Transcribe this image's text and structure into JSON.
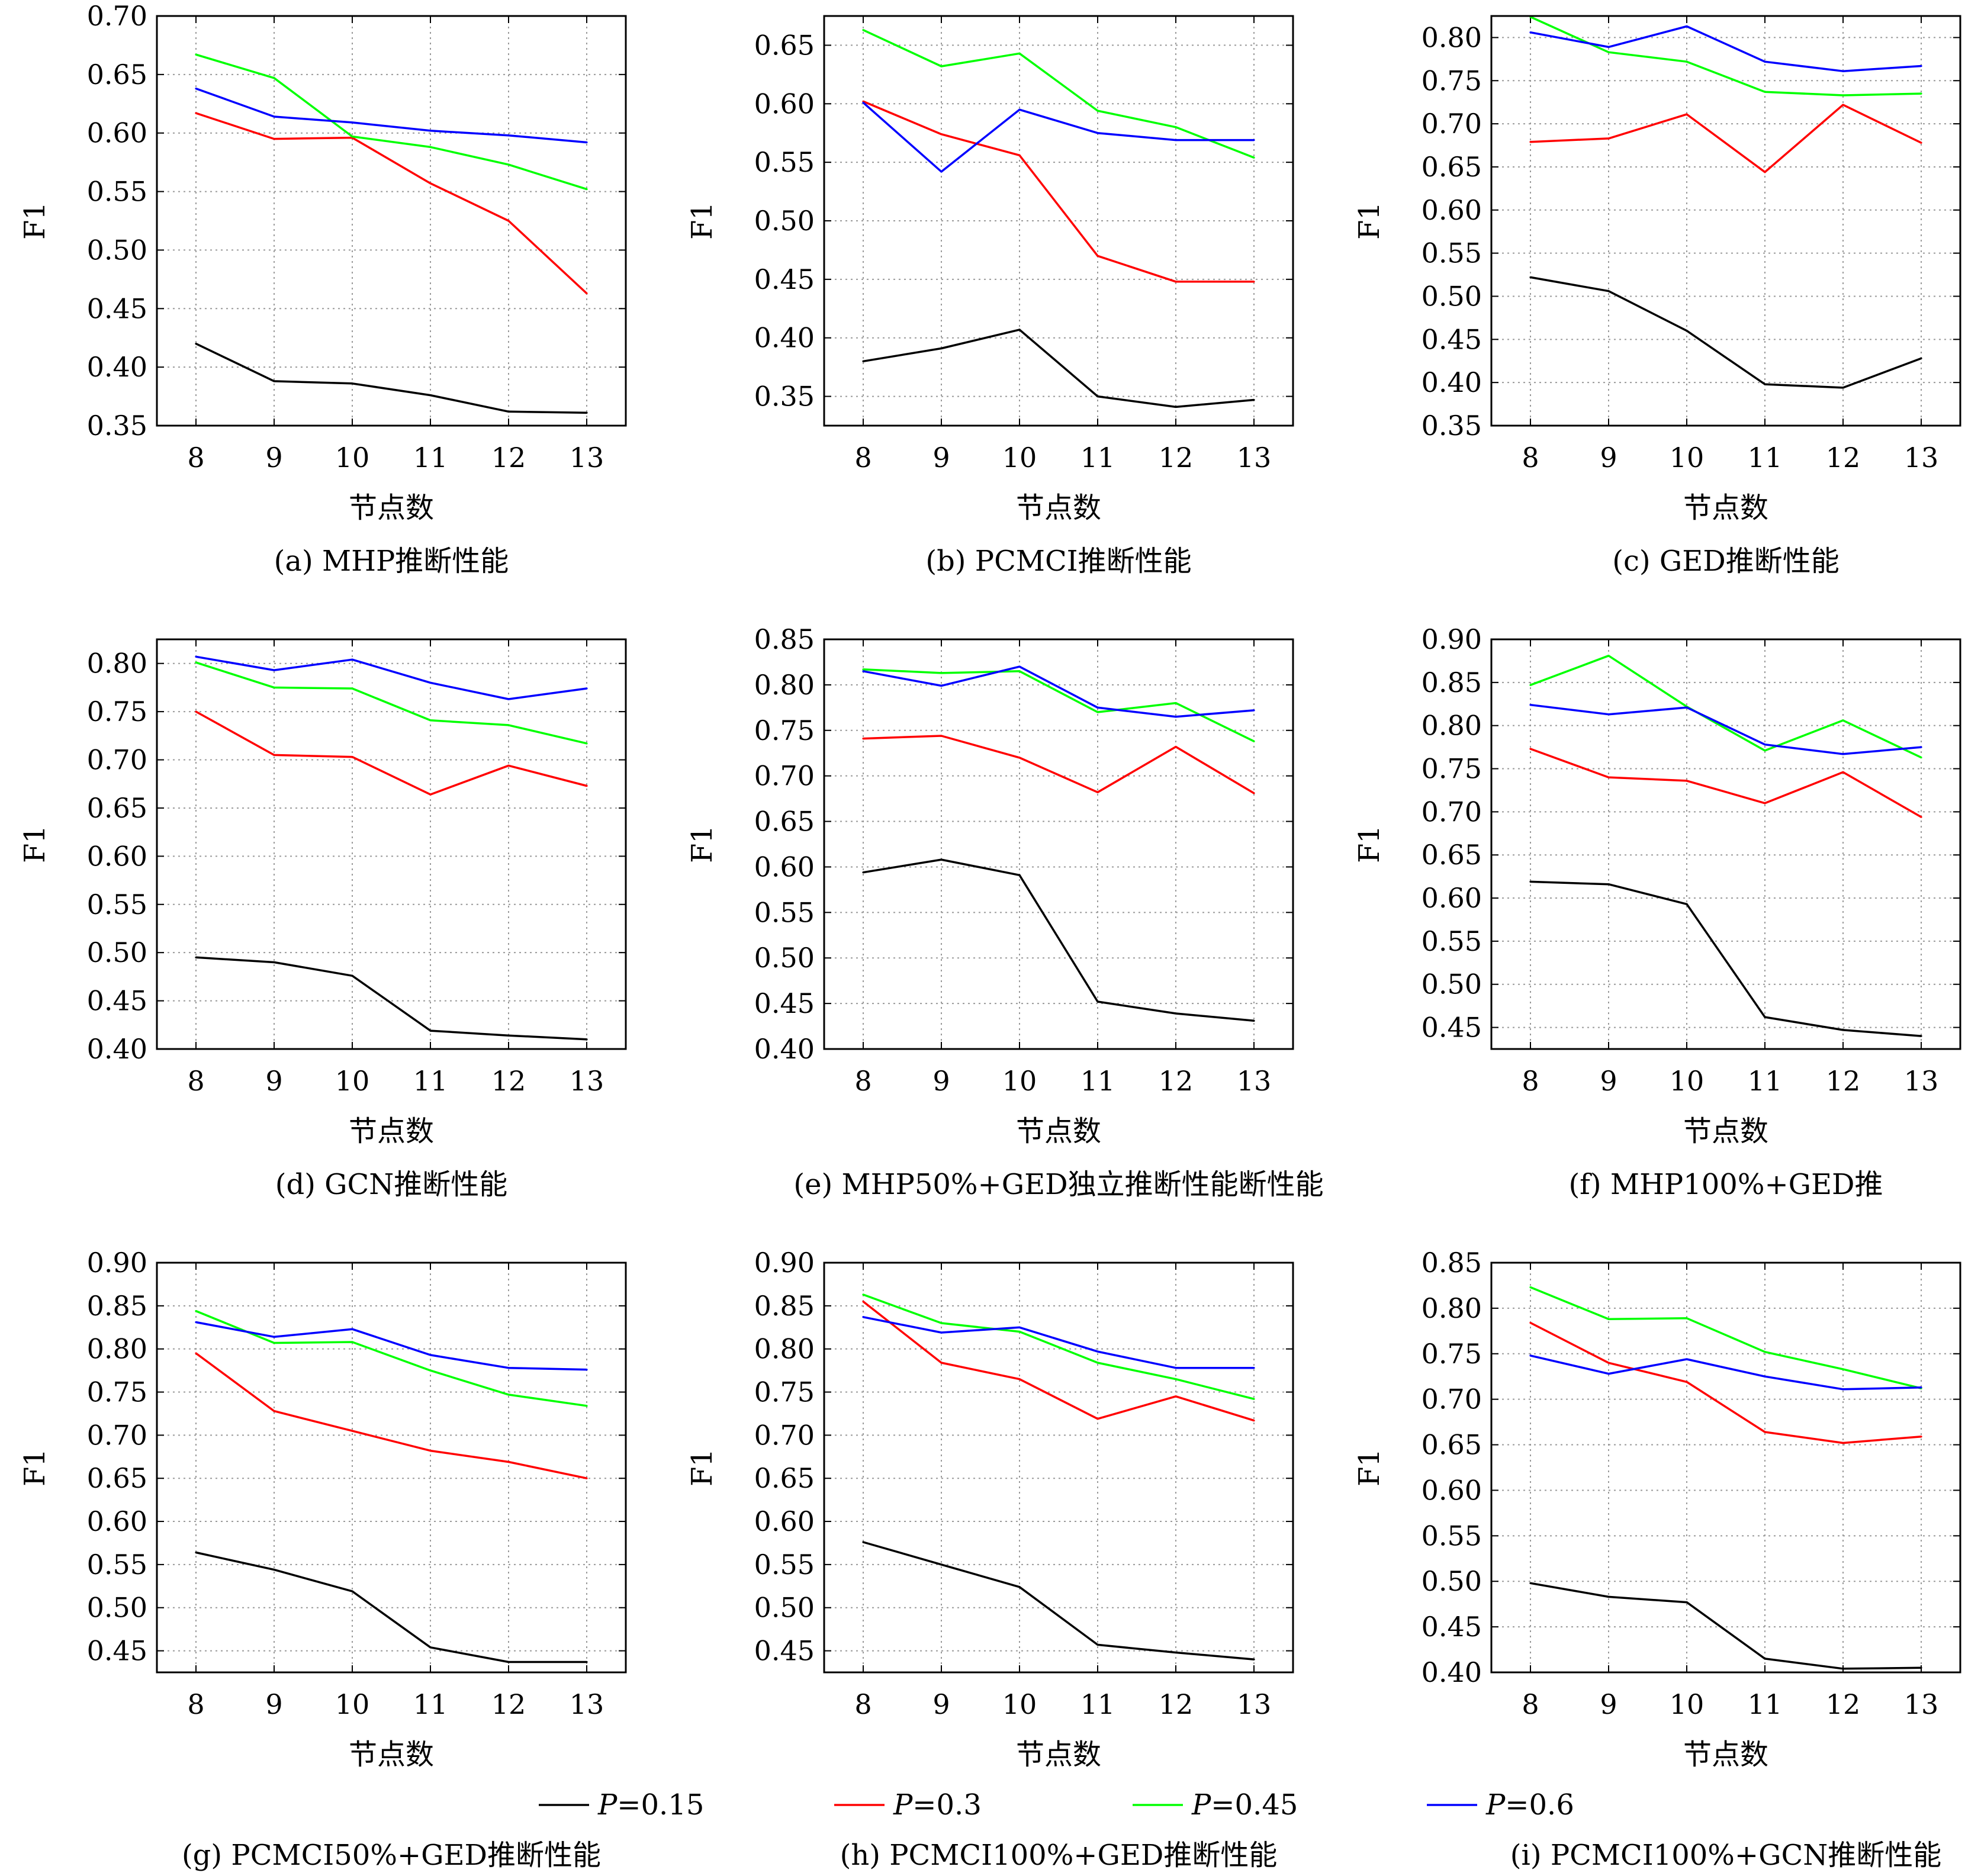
{
  "series_styles": [
    {
      "name": "P=0.15",
      "color": "#000000"
    },
    {
      "name": "P=0.3",
      "color": "#ff0000"
    },
    {
      "name": "P=0.45",
      "color": "#00ff00"
    },
    {
      "name": "P=0.6",
      "color": "#0000ff"
    }
  ],
  "legend": {
    "placement": "bottom",
    "entries": [
      {
        "italic": "P",
        "rest": "=0.15"
      },
      {
        "italic": "P",
        "rest": "=0.3"
      },
      {
        "italic": "P",
        "rest": "=0.45"
      },
      {
        "italic": "P",
        "rest": "=0.6"
      }
    ]
  },
  "chart_data": [
    {
      "type": "line",
      "caption": "(a) MHP推断性能",
      "xlabel": "节点数",
      "ylabel": "F1",
      "x": [
        8,
        9,
        10,
        11,
        12,
        13
      ],
      "ylim": [
        0.35,
        0.7
      ],
      "yticks": [
        "0.35",
        "0.40",
        "0.45",
        "0.50",
        "0.55",
        "0.60",
        "0.65",
        "0.70"
      ],
      "grid": true,
      "series": [
        {
          "name": "P=0.15",
          "values": [
            0.42,
            0.388,
            0.386,
            0.376,
            0.362,
            0.361
          ]
        },
        {
          "name": "P=0.3",
          "values": [
            0.617,
            0.595,
            0.596,
            0.557,
            0.525,
            0.463
          ]
        },
        {
          "name": "P=0.45",
          "values": [
            0.667,
            0.647,
            0.597,
            0.588,
            0.573,
            0.552
          ]
        },
        {
          "name": "P=0.6",
          "values": [
            0.638,
            0.614,
            0.609,
            0.602,
            0.598,
            0.592
          ]
        }
      ]
    },
    {
      "type": "line",
      "caption": "(b) PCMCI推断性能",
      "xlabel": "节点数",
      "ylabel": "F1",
      "x": [
        8,
        9,
        10,
        11,
        12,
        13
      ],
      "ylim": [
        0.325,
        0.675
      ],
      "yticks": [
        "0.35",
        "0.40",
        "0.45",
        "0.50",
        "0.55",
        "0.60",
        "0.65"
      ],
      "grid": true,
      "series": [
        {
          "name": "P=0.15",
          "values": [
            0.38,
            0.391,
            0.407,
            0.35,
            0.341,
            0.347
          ]
        },
        {
          "name": "P=0.3",
          "values": [
            0.602,
            0.574,
            0.556,
            0.47,
            0.448,
            0.448
          ]
        },
        {
          "name": "P=0.45",
          "values": [
            0.663,
            0.632,
            0.643,
            0.594,
            0.58,
            0.554
          ]
        },
        {
          "name": "P=0.6",
          "values": [
            0.601,
            0.542,
            0.595,
            0.575,
            0.569,
            0.569
          ]
        }
      ]
    },
    {
      "type": "line",
      "caption": "(c) GED推断性能",
      "xlabel": "节点数",
      "ylabel": "F1",
      "x": [
        8,
        9,
        10,
        11,
        12,
        13
      ],
      "ylim": [
        0.35,
        0.825
      ],
      "yticks": [
        "0.35",
        "0.40",
        "0.45",
        "0.50",
        "0.55",
        "0.60",
        "0.65",
        "0.70",
        "0.75",
        "0.80"
      ],
      "grid": true,
      "series": [
        {
          "name": "P=0.15",
          "values": [
            0.522,
            0.506,
            0.46,
            0.398,
            0.394,
            0.428
          ]
        },
        {
          "name": "P=0.3",
          "values": [
            0.679,
            0.683,
            0.711,
            0.644,
            0.722,
            0.678
          ]
        },
        {
          "name": "P=0.45",
          "values": [
            0.824,
            0.783,
            0.772,
            0.737,
            0.733,
            0.735
          ]
        },
        {
          "name": "P=0.6",
          "values": [
            0.806,
            0.789,
            0.813,
            0.772,
            0.761,
            0.767
          ]
        }
      ]
    },
    {
      "type": "line",
      "caption": "(d) GCN推断性能",
      "xlabel": "节点数",
      "ylabel": "F1",
      "x": [
        8,
        9,
        10,
        11,
        12,
        13
      ],
      "ylim": [
        0.4,
        0.825
      ],
      "yticks": [
        "0.40",
        "0.45",
        "0.50",
        "0.55",
        "0.60",
        "0.65",
        "0.70",
        "0.75",
        "0.80"
      ],
      "grid": true,
      "series": [
        {
          "name": "P=0.15",
          "values": [
            0.495,
            0.49,
            0.476,
            0.419,
            0.414,
            0.41
          ]
        },
        {
          "name": "P=0.3",
          "values": [
            0.75,
            0.705,
            0.703,
            0.664,
            0.694,
            0.673
          ]
        },
        {
          "name": "P=0.45",
          "values": [
            0.801,
            0.775,
            0.774,
            0.741,
            0.736,
            0.717
          ]
        },
        {
          "name": "P=0.6",
          "values": [
            0.807,
            0.793,
            0.804,
            0.78,
            0.763,
            0.774
          ]
        }
      ]
    },
    {
      "type": "line",
      "caption": "(e) MHP50%+GED独立推断性能断性能",
      "xlabel": "节点数",
      "ylabel": "F1",
      "x": [
        8,
        9,
        10,
        11,
        12,
        13
      ],
      "ylim": [
        0.4,
        0.85
      ],
      "yticks": [
        "0.40",
        "0.45",
        "0.50",
        "0.55",
        "0.60",
        "0.65",
        "0.70",
        "0.75",
        "0.80",
        "0.85"
      ],
      "grid": true,
      "series": [
        {
          "name": "P=0.15",
          "values": [
            0.594,
            0.608,
            0.591,
            0.452,
            0.439,
            0.431
          ]
        },
        {
          "name": "P=0.3",
          "values": [
            0.741,
            0.744,
            0.72,
            0.682,
            0.732,
            0.681
          ]
        },
        {
          "name": "P=0.45",
          "values": [
            0.817,
            0.813,
            0.815,
            0.77,
            0.78,
            0.738
          ]
        },
        {
          "name": "P=0.6",
          "values": [
            0.815,
            0.799,
            0.82,
            0.775,
            0.765,
            0.772
          ]
        }
      ]
    },
    {
      "type": "line",
      "caption": "(f) MHP100%+GED推",
      "xlabel": "节点数",
      "ylabel": "F1",
      "x": [
        8,
        9,
        10,
        11,
        12,
        13
      ],
      "ylim": [
        0.425,
        0.9
      ],
      "yticks": [
        "0.45",
        "0.50",
        "0.55",
        "0.60",
        "0.65",
        "0.70",
        "0.75",
        "0.80",
        "0.85",
        "0.90"
      ],
      "grid": true,
      "series": [
        {
          "name": "P=0.15",
          "values": [
            0.619,
            0.616,
            0.593,
            0.462,
            0.447,
            0.44
          ]
        },
        {
          "name": "P=0.3",
          "values": [
            0.773,
            0.74,
            0.736,
            0.71,
            0.746,
            0.694
          ]
        },
        {
          "name": "P=0.45",
          "values": [
            0.847,
            0.881,
            0.822,
            0.771,
            0.806,
            0.763
          ]
        },
        {
          "name": "P=0.6",
          "values": [
            0.824,
            0.813,
            0.821,
            0.778,
            0.767,
            0.775
          ]
        }
      ]
    },
    {
      "type": "line",
      "caption": "(g) PCMCI50%+GED推断性能",
      "xlabel": "节点数",
      "ylabel": "F1",
      "x": [
        8,
        9,
        10,
        11,
        12,
        13
      ],
      "ylim": [
        0.425,
        0.9
      ],
      "yticks": [
        "0.45",
        "0.50",
        "0.55",
        "0.60",
        "0.65",
        "0.70",
        "0.75",
        "0.80",
        "0.85",
        "0.90"
      ],
      "grid": true,
      "series": [
        {
          "name": "P=0.15",
          "values": [
            0.564,
            0.544,
            0.519,
            0.454,
            0.437,
            0.437
          ]
        },
        {
          "name": "P=0.3",
          "values": [
            0.795,
            0.728,
            0.705,
            0.682,
            0.669,
            0.65
          ]
        },
        {
          "name": "P=0.45",
          "values": [
            0.844,
            0.807,
            0.808,
            0.775,
            0.747,
            0.734
          ]
        },
        {
          "name": "P=0.6",
          "values": [
            0.831,
            0.814,
            0.823,
            0.793,
            0.778,
            0.776
          ]
        }
      ]
    },
    {
      "type": "line",
      "caption": "(h) PCMCI100%+GED推断性能",
      "xlabel": "节点数",
      "ylabel": "F1",
      "x": [
        8,
        9,
        10,
        11,
        12,
        13
      ],
      "ylim": [
        0.425,
        0.9
      ],
      "yticks": [
        "0.45",
        "0.50",
        "0.55",
        "0.60",
        "0.65",
        "0.70",
        "0.75",
        "0.80",
        "0.85",
        "0.90"
      ],
      "grid": true,
      "series": [
        {
          "name": "P=0.15",
          "values": [
            0.576,
            0.55,
            0.524,
            0.457,
            0.448,
            0.44
          ]
        },
        {
          "name": "P=0.3",
          "values": [
            0.855,
            0.784,
            0.765,
            0.719,
            0.745,
            0.717
          ]
        },
        {
          "name": "P=0.45",
          "values": [
            0.863,
            0.83,
            0.82,
            0.784,
            0.765,
            0.742
          ]
        },
        {
          "name": "P=0.6",
          "values": [
            0.837,
            0.819,
            0.825,
            0.797,
            0.778,
            0.778
          ]
        }
      ]
    },
    {
      "type": "line",
      "caption": "(i) PCMCI100%+GCN推断性能",
      "xlabel": "节点数",
      "ylabel": "F1",
      "x": [
        8,
        9,
        10,
        11,
        12,
        13
      ],
      "ylim": [
        0.4,
        0.85
      ],
      "yticks": [
        "0.40",
        "0.45",
        "0.50",
        "0.55",
        "0.60",
        "0.65",
        "0.70",
        "0.75",
        "0.80",
        "0.85"
      ],
      "grid": true,
      "series": [
        {
          "name": "P=0.15",
          "values": [
            0.498,
            0.483,
            0.477,
            0.415,
            0.404,
            0.405
          ]
        },
        {
          "name": "P=0.3",
          "values": [
            0.784,
            0.74,
            0.719,
            0.664,
            0.652,
            0.659
          ]
        },
        {
          "name": "P=0.45",
          "values": [
            0.823,
            0.788,
            0.789,
            0.752,
            0.733,
            0.712
          ]
        },
        {
          "name": "P=0.6",
          "values": [
            0.748,
            0.728,
            0.744,
            0.725,
            0.711,
            0.713
          ]
        }
      ]
    }
  ]
}
